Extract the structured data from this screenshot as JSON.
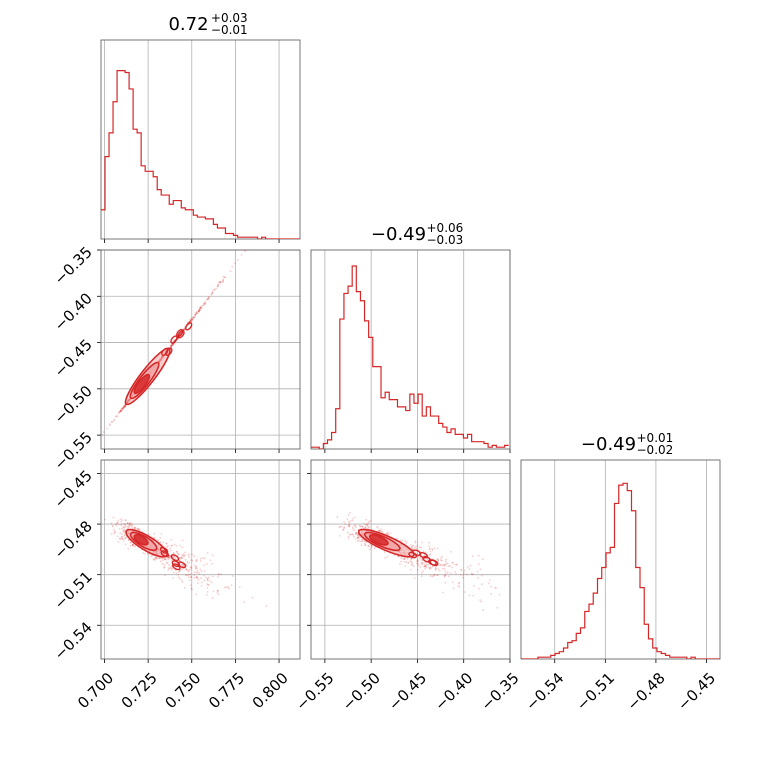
{
  "chart_data": {
    "type": "corner",
    "color": "#d62728",
    "fill_color": "#f2a5a6",
    "grid": true,
    "parameters": [
      {
        "title": {
          "median": "0.72",
          "plus": "+0.03",
          "minus": "−0.01"
        },
        "range": [
          0.698,
          0.812
        ],
        "ticks": [
          0.7,
          0.725,
          0.75,
          0.775,
          0.8
        ],
        "tick_labels": [
          "0.700",
          "0.725",
          "0.750",
          "0.775",
          "0.800"
        ],
        "hist_edges_start": 0.698,
        "hist_bin_width": 0.0023,
        "hist_counts": [
          0.16,
          0.45,
          0.58,
          0.75,
          0.92,
          0.92,
          0.91,
          0.82,
          0.6,
          0.58,
          0.4,
          0.37,
          0.37,
          0.34,
          0.27,
          0.24,
          0.24,
          0.19,
          0.21,
          0.21,
          0.17,
          0.16,
          0.16,
          0.13,
          0.12,
          0.12,
          0.11,
          0.11,
          0.08,
          0.06,
          0.06,
          0.03,
          0.03,
          0.02,
          0.01,
          0.01,
          0.01,
          0.01,
          0.01,
          0.0,
          0.01,
          0.0,
          0.0,
          0.0,
          0.0,
          0.0,
          0.0,
          0.0,
          0.0,
          0.0
        ]
      },
      {
        "title": {
          "median": "−0.49",
          "plus": "+0.06",
          "minus": "−0.03"
        },
        "range": [
          -0.565,
          -0.35
        ],
        "ticks": [
          -0.55,
          -0.5,
          -0.45,
          -0.4,
          -0.35
        ],
        "tick_labels": [
          "−0.55",
          "−0.50",
          "−0.45",
          "−0.40",
          "−0.35"
        ],
        "hist_edges_start": -0.565,
        "hist_bin_width": 0.00445,
        "hist_counts": [
          0.01,
          0.01,
          0.0,
          0.03,
          0.05,
          0.09,
          0.22,
          0.71,
          0.85,
          0.89,
          1.0,
          0.86,
          0.81,
          0.7,
          0.61,
          0.45,
          0.45,
          0.28,
          0.31,
          0.27,
          0.27,
          0.23,
          0.23,
          0.21,
          0.3,
          0.25,
          0.3,
          0.18,
          0.23,
          0.18,
          0.18,
          0.14,
          0.12,
          0.09,
          0.11,
          0.08,
          0.08,
          0.06,
          0.08,
          0.04,
          0.04,
          0.04,
          0.03,
          0.01,
          0.02,
          0.01,
          0.01,
          0.02
        ]
      },
      {
        "title": {
          "median": "−0.49",
          "plus": "+0.01",
          "minus": "−0.02"
        },
        "range": [
          -0.56,
          -0.442
        ],
        "ticks": [
          -0.54,
          -0.51,
          -0.48,
          -0.45
        ],
        "tick_labels": [
          "−0.54",
          "−0.51",
          "−0.48",
          "−0.45"
        ],
        "hist_edges_start": -0.56,
        "hist_bin_width": 0.00252,
        "hist_counts": [
          0.0,
          0.0,
          0.0,
          0.0,
          0.01,
          0.01,
          0.01,
          0.02,
          0.03,
          0.04,
          0.06,
          0.09,
          0.1,
          0.14,
          0.17,
          0.26,
          0.3,
          0.36,
          0.44,
          0.5,
          0.58,
          0.61,
          0.85,
          0.95,
          0.96,
          0.92,
          0.81,
          0.5,
          0.39,
          0.19,
          0.11,
          0.06,
          0.04,
          0.03,
          0.02,
          0.01,
          0.01,
          0.01,
          0.01,
          0.0,
          0.01,
          0.0,
          0.0,
          0.0,
          0.0,
          0.0,
          0.0
        ]
      }
    ],
    "pairs": [
      {
        "x_param": 0,
        "y_param": 1,
        "mean": [
          0.7225,
          -0.492
        ],
        "principal_direction": [
          0.0224,
          0.0546
        ],
        "spread_along": 1.0,
        "spread_across": [
          0.0028,
          0.006
        ],
        "n_samples": 700
      },
      {
        "x_param": 0,
        "y_param": 2,
        "mean": [
          0.722,
          -0.49
        ],
        "principal_direction": [
          0.021,
          -0.0132
        ],
        "spread_along": 1.0,
        "spread_across": [
          0.0022,
          0.0035
        ],
        "n_samples": 700
      },
      {
        "x_param": 1,
        "y_param": 2,
        "mean": [
          -0.489,
          -0.49
        ],
        "principal_direction": [
          0.054,
          -0.013
        ],
        "spread_along": 1.0,
        "spread_across": [
          0.005,
          0.0035
        ],
        "n_samples": 700
      }
    ]
  }
}
